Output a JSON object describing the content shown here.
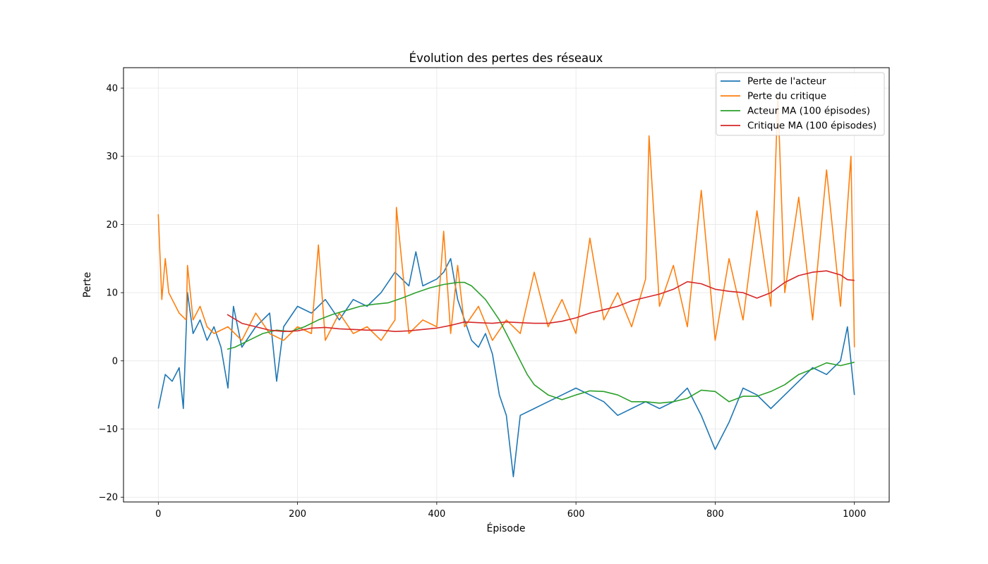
{
  "chart_data": {
    "type": "line",
    "title": "Évolution des pertes des réseaux",
    "xlabel": "Épisode",
    "ylabel": "Perte",
    "xlim": [
      -50,
      1050
    ],
    "ylim": [
      -20.7,
      43
    ],
    "xticks": [
      0,
      200,
      400,
      600,
      800,
      1000
    ],
    "yticks": [
      -20,
      -10,
      0,
      10,
      20,
      30,
      40
    ],
    "grid": true,
    "legend_position": "top-right",
    "series": [
      {
        "name": "Perte de l'acteur",
        "color": "#1f77b4",
        "x": [
          0,
          10,
          20,
          30,
          36,
          42,
          50,
          60,
          70,
          80,
          90,
          100,
          108,
          120,
          140,
          160,
          170,
          180,
          200,
          220,
          240,
          260,
          280,
          300,
          320,
          340,
          360,
          370,
          380,
          400,
          410,
          420,
          430,
          440,
          450,
          460,
          470,
          480,
          490,
          500,
          510,
          520,
          540,
          560,
          580,
          600,
          620,
          640,
          660,
          680,
          700,
          720,
          740,
          760,
          780,
          800,
          820,
          840,
          860,
          880,
          900,
          920,
          940,
          960,
          980,
          990,
          1000
        ],
        "values": [
          -7,
          -2,
          -3,
          -1,
          -7,
          10,
          4,
          6,
          3,
          5,
          2,
          -4,
          8,
          2,
          5,
          7,
          -3,
          5,
          8,
          7,
          9,
          6,
          9,
          8,
          10,
          13,
          11,
          16,
          11,
          12,
          13,
          15,
          9,
          6,
          3,
          2,
          4,
          1,
          -5,
          -8,
          -17,
          -8,
          -7,
          -6,
          -5,
          -4,
          -5,
          -6,
          -8,
          -7,
          -6,
          -7,
          -6,
          -4,
          -8,
          -13,
          -9,
          -4,
          -5,
          -7,
          -5,
          -3,
          -1,
          -2,
          0,
          5,
          -5
        ]
      },
      {
        "name": "Perte du critique",
        "color": "#ff7f0e",
        "x": [
          0,
          5,
          10,
          15,
          20,
          30,
          40,
          42,
          50,
          60,
          70,
          80,
          100,
          120,
          140,
          160,
          180,
          200,
          220,
          230,
          240,
          260,
          280,
          300,
          320,
          340,
          342,
          360,
          380,
          400,
          410,
          420,
          430,
          440,
          460,
          480,
          500,
          520,
          540,
          560,
          580,
          600,
          620,
          640,
          660,
          680,
          700,
          705,
          720,
          740,
          760,
          780,
          800,
          820,
          840,
          860,
          880,
          890,
          900,
          920,
          940,
          960,
          980,
          995,
          1000
        ],
        "values": [
          21.5,
          9,
          15,
          10,
          9,
          7,
          6,
          14,
          6,
          8,
          5,
          4,
          5,
          3,
          7,
          4,
          3,
          5,
          4,
          17,
          3,
          7,
          4,
          5,
          3,
          6,
          22.5,
          4,
          6,
          5,
          19,
          4,
          14,
          5,
          8,
          3,
          6,
          4,
          13,
          5,
          9,
          4,
          18,
          6,
          10,
          5,
          12,
          33,
          8,
          14,
          5,
          25,
          3,
          15,
          6,
          22,
          8,
          39,
          10,
          24,
          6,
          28,
          8,
          30,
          2
        ]
      },
      {
        "name": "Acteur MA (100 épisodes)",
        "color": "#2ca02c",
        "x": [
          99,
          110,
          130,
          150,
          170,
          190,
          210,
          230,
          250,
          270,
          290,
          310,
          330,
          350,
          370,
          390,
          410,
          430,
          440,
          450,
          460,
          470,
          480,
          490,
          500,
          510,
          520,
          530,
          540,
          560,
          580,
          600,
          620,
          640,
          660,
          680,
          700,
          720,
          740,
          760,
          780,
          800,
          820,
          840,
          860,
          880,
          900,
          920,
          940,
          960,
          980,
          1000
        ],
        "values": [
          1.7,
          2,
          3,
          4,
          4.5,
          4.3,
          5,
          6,
          6.8,
          7.4,
          8,
          8.3,
          8.5,
          9.2,
          10,
          10.7,
          11.2,
          11.5,
          11.5,
          11,
          10,
          9,
          7.5,
          6,
          4,
          2,
          0,
          -2,
          -3.5,
          -5,
          -5.7,
          -5,
          -4.4,
          -4.5,
          -5,
          -6,
          -6,
          -6.2,
          -6,
          -5.5,
          -4.3,
          -4.5,
          -6,
          -5.2,
          -5.2,
          -4.5,
          -3.5,
          -2,
          -1.2,
          -0.3,
          -0.7,
          -0.2
        ]
      },
      {
        "name": "Critique MA (100 épisodes)",
        "color": "#d62728",
        "x": [
          99,
          120,
          140,
          160,
          180,
          200,
          220,
          240,
          260,
          280,
          300,
          320,
          340,
          360,
          380,
          400,
          420,
          440,
          460,
          480,
          500,
          520,
          540,
          560,
          580,
          600,
          620,
          640,
          660,
          680,
          700,
          720,
          740,
          760,
          780,
          800,
          820,
          840,
          860,
          880,
          900,
          920,
          940,
          960,
          980,
          990,
          1000
        ],
        "values": [
          6.8,
          5.5,
          5,
          4.5,
          4.3,
          4.4,
          4.8,
          4.9,
          4.7,
          4.6,
          4.5,
          4.5,
          4.3,
          4.4,
          4.6,
          4.8,
          5.2,
          5.7,
          5.6,
          5.5,
          5.7,
          5.6,
          5.5,
          5.5,
          5.8,
          6.3,
          7,
          7.5,
          8,
          8.8,
          9.3,
          9.8,
          10.5,
          11.6,
          11.3,
          10.5,
          10.2,
          10,
          9.2,
          10,
          11.5,
          12.5,
          13,
          13.2,
          12.6,
          11.9,
          11.8
        ]
      }
    ]
  }
}
